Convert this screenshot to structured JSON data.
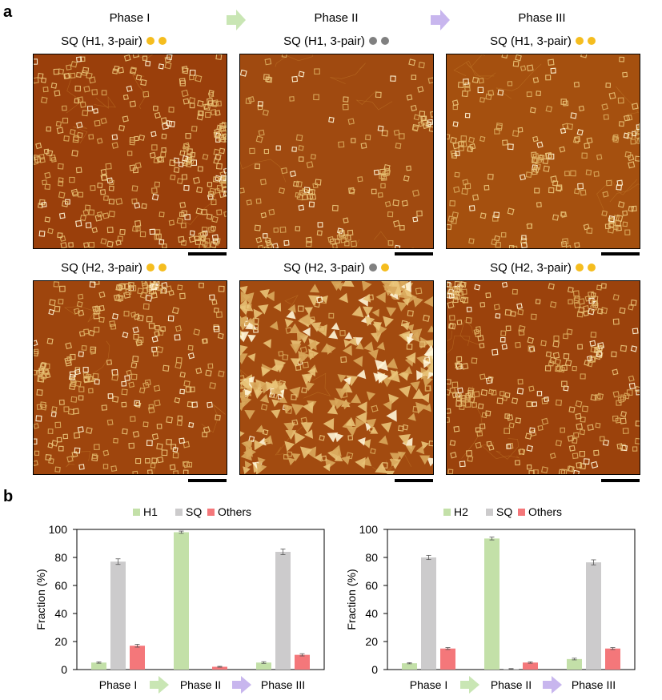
{
  "panel_a": {
    "letter": "a",
    "phase_headers": [
      "Phase I",
      "Phase II",
      "Phase III"
    ],
    "arrow_colors": [
      "#c9e6b4",
      "#c8b6ee"
    ],
    "dot_colors": {
      "on": "#f5bd1f",
      "off": "#808080"
    },
    "images": [
      {
        "label": "SQ (H1, 3-pair)",
        "dots": [
          "on",
          "on"
        ],
        "content": "squares",
        "density": 330,
        "bg": "#9a3f0b"
      },
      {
        "label": "SQ (H1, 3-pair)",
        "dots": [
          "off",
          "off"
        ],
        "content": "squares",
        "density": 150,
        "bg": "#a04a10"
      },
      {
        "label": "SQ (H1, 3-pair)",
        "dots": [
          "on",
          "on"
        ],
        "content": "squares",
        "density": 200,
        "bg": "#a5500f"
      },
      {
        "label": "SQ (H2, 3-pair)",
        "dots": [
          "on",
          "on"
        ],
        "content": "squares",
        "density": 280,
        "bg": "#9e450d"
      },
      {
        "label": "SQ (H2, 3-pair)",
        "dots": [
          "off",
          "on"
        ],
        "content": "triangles",
        "density": 380,
        "bg": "#a24b10"
      },
      {
        "label": "SQ (H2, 3-pair)",
        "dots": [
          "on",
          "on"
        ],
        "content": "squares",
        "density": 280,
        "bg": "#9b420c"
      }
    ]
  },
  "panel_b": {
    "letter": "b",
    "series_colors": {
      "H": "#c3e0a8",
      "SQ": "#cccbcc",
      "Others": "#f4777a"
    }
  },
  "chart_data": [
    {
      "type": "bar",
      "categories": [
        "Phase I",
        "Phase II",
        "Phase III"
      ],
      "series": [
        {
          "name": "H1",
          "values": [
            5,
            98,
            5
          ],
          "errors": [
            0.5,
            0.8,
            0.6
          ]
        },
        {
          "name": "SQ",
          "values": [
            77,
            0,
            84
          ],
          "errors": [
            2,
            0,
            2
          ]
        },
        {
          "name": "Others",
          "values": [
            17,
            2,
            10.5
          ],
          "errors": [
            1,
            0.3,
            0.8
          ]
        }
      ],
      "ylabel": "Fraction (%)",
      "ylim": [
        0,
        100
      ],
      "yticks": [
        0,
        20,
        40,
        60,
        80,
        100
      ],
      "legend": "top-center",
      "grid": false
    },
    {
      "type": "bar",
      "categories": [
        "Phase I",
        "Phase II",
        "Phase III"
      ],
      "series": [
        {
          "name": "H2",
          "values": [
            4.5,
            93.5,
            7.5
          ],
          "errors": [
            0.4,
            1,
            0.6
          ]
        },
        {
          "name": "SQ",
          "values": [
            80,
            0.5,
            76.5
          ],
          "errors": [
            1.5,
            0.2,
            1.8
          ]
        },
        {
          "name": "Others",
          "values": [
            15,
            5,
            15
          ],
          "errors": [
            0.7,
            0.5,
            0.7
          ]
        }
      ],
      "ylabel": "Fraction (%)",
      "ylim": [
        0,
        100
      ],
      "yticks": [
        0,
        20,
        40,
        60,
        80,
        100
      ],
      "legend": "top-center",
      "grid": false
    }
  ]
}
